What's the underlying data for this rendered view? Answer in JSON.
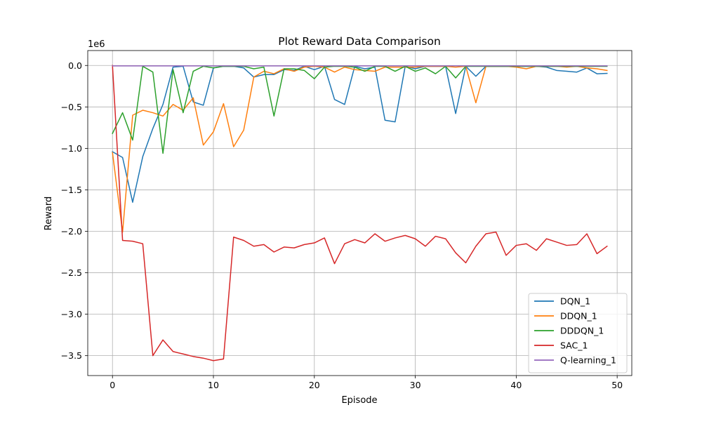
{
  "chart_data": {
    "type": "line",
    "title": "Plot Reward Data Comparison",
    "xlabel": "Episode",
    "ylabel": "Reward",
    "y_offset_label": "1e6",
    "y_scale": 1000000,
    "xlim": [
      -2.45,
      51.45
    ],
    "ylim": [
      -3.74,
      0.18
    ],
    "xticks": [
      0,
      10,
      20,
      30,
      40,
      50
    ],
    "yticks": [
      0.0,
      -0.5,
      -1.0,
      -1.5,
      -2.0,
      -2.5,
      -3.0,
      -3.5
    ],
    "ytick_labels": [
      "0.0",
      "−0.5",
      "−1.0",
      "−1.5",
      "−2.0",
      "−2.5",
      "−3.0",
      "−3.5"
    ],
    "grid": true,
    "legend_position": "lower-right",
    "x": [
      0,
      1,
      2,
      3,
      4,
      5,
      6,
      7,
      8,
      9,
      10,
      11,
      12,
      13,
      14,
      15,
      16,
      17,
      18,
      19,
      20,
      21,
      22,
      23,
      24,
      25,
      26,
      27,
      28,
      29,
      30,
      31,
      32,
      33,
      34,
      35,
      36,
      37,
      38,
      39,
      40,
      41,
      42,
      43,
      44,
      45,
      46,
      47,
      48,
      49
    ],
    "series": [
      {
        "name": "DQN_1",
        "color": "#1f77b4",
        "values": [
          -1040000,
          -1110000,
          -1650000,
          -1100000,
          -760000,
          -470000,
          -20000,
          -10000,
          -440000,
          -480000,
          -30000,
          -10000,
          -10000,
          -30000,
          -140000,
          -110000,
          -110000,
          -50000,
          -60000,
          -10000,
          -50000,
          -10000,
          -410000,
          -470000,
          -10000,
          -40000,
          -20000,
          -660000,
          -680000,
          -10000,
          -40000,
          -10000,
          -10000,
          -10000,
          -580000,
          -10000,
          -130000,
          -10000,
          -10000,
          -10000,
          -10000,
          -10000,
          -10000,
          -20000,
          -60000,
          -70000,
          -80000,
          -30000,
          -100000,
          -95000
        ]
      },
      {
        "name": "DDQN_1",
        "color": "#ff7f0e",
        "values": [
          -1050000,
          -2010000,
          -600000,
          -540000,
          -570000,
          -610000,
          -470000,
          -540000,
          -390000,
          -960000,
          -800000,
          -460000,
          -980000,
          -780000,
          -140000,
          -70000,
          -100000,
          -40000,
          -70000,
          -20000,
          -10000,
          -20000,
          -80000,
          -20000,
          -50000,
          -60000,
          -70000,
          -20000,
          -20000,
          -20000,
          -20000,
          -10000,
          -10000,
          -10000,
          -20000,
          -10000,
          -450000,
          -10000,
          -10000,
          -10000,
          -20000,
          -40000,
          -10000,
          -10000,
          -10000,
          -20000,
          -10000,
          -30000,
          -40000,
          -60000
        ]
      },
      {
        "name": "DDDQN_1",
        "color": "#2ca02c",
        "values": [
          -820000,
          -570000,
          -900000,
          -10000,
          -80000,
          -1060000,
          -50000,
          -570000,
          -70000,
          -10000,
          -30000,
          -10000,
          -10000,
          -10000,
          -40000,
          -20000,
          -610000,
          -40000,
          -40000,
          -60000,
          -160000,
          -20000,
          -10000,
          -10000,
          -20000,
          -70000,
          -10000,
          -10000,
          -70000,
          -10000,
          -70000,
          -30000,
          -100000,
          -10000,
          -150000,
          -10000,
          -10000,
          -10000,
          -10000,
          -10000,
          -10000,
          -10000,
          -10000,
          -10000,
          -10000,
          -10000,
          -10000,
          -10000,
          -10000,
          -10000
        ]
      },
      {
        "name": "SAC_1",
        "color": "#d62728",
        "values": [
          0,
          -2110000,
          -2120000,
          -2150000,
          -3500000,
          -3310000,
          -3450000,
          -3480000,
          -3510000,
          -3530000,
          -3560000,
          -3540000,
          -2070000,
          -2110000,
          -2180000,
          -2160000,
          -2250000,
          -2190000,
          -2200000,
          -2160000,
          -2140000,
          -2080000,
          -2390000,
          -2150000,
          -2100000,
          -2140000,
          -2030000,
          -2120000,
          -2080000,
          -2050000,
          -2090000,
          -2180000,
          -2060000,
          -2090000,
          -2260000,
          -2380000,
          -2180000,
          -2030000,
          -2010000,
          -2290000,
          -2170000,
          -2150000,
          -2230000,
          -2090000,
          -2130000,
          -2170000,
          -2160000,
          -2030000,
          -2270000,
          -2180000
        ]
      },
      {
        "name": "Q-learning_1",
        "color": "#9467bd",
        "values": [
          -5000,
          -5000,
          -5000,
          -5000,
          -5000,
          -5000,
          -5000,
          -5000,
          -5000,
          -5000,
          -5000,
          -5000,
          -5000,
          -5000,
          -5000,
          -5000,
          -5000,
          -5000,
          -5000,
          -5000,
          -5000,
          -5000,
          -5000,
          -5000,
          -5000,
          -5000,
          -5000,
          -5000,
          -5000,
          -5000,
          -5000,
          -5000,
          -5000,
          -5000,
          -5000,
          -5000,
          -5000,
          -5000,
          -5000,
          -5000,
          -5000,
          -5000,
          -5000,
          -5000,
          -5000,
          -5000,
          -5000,
          -5000,
          -5000,
          -5000
        ]
      }
    ]
  }
}
